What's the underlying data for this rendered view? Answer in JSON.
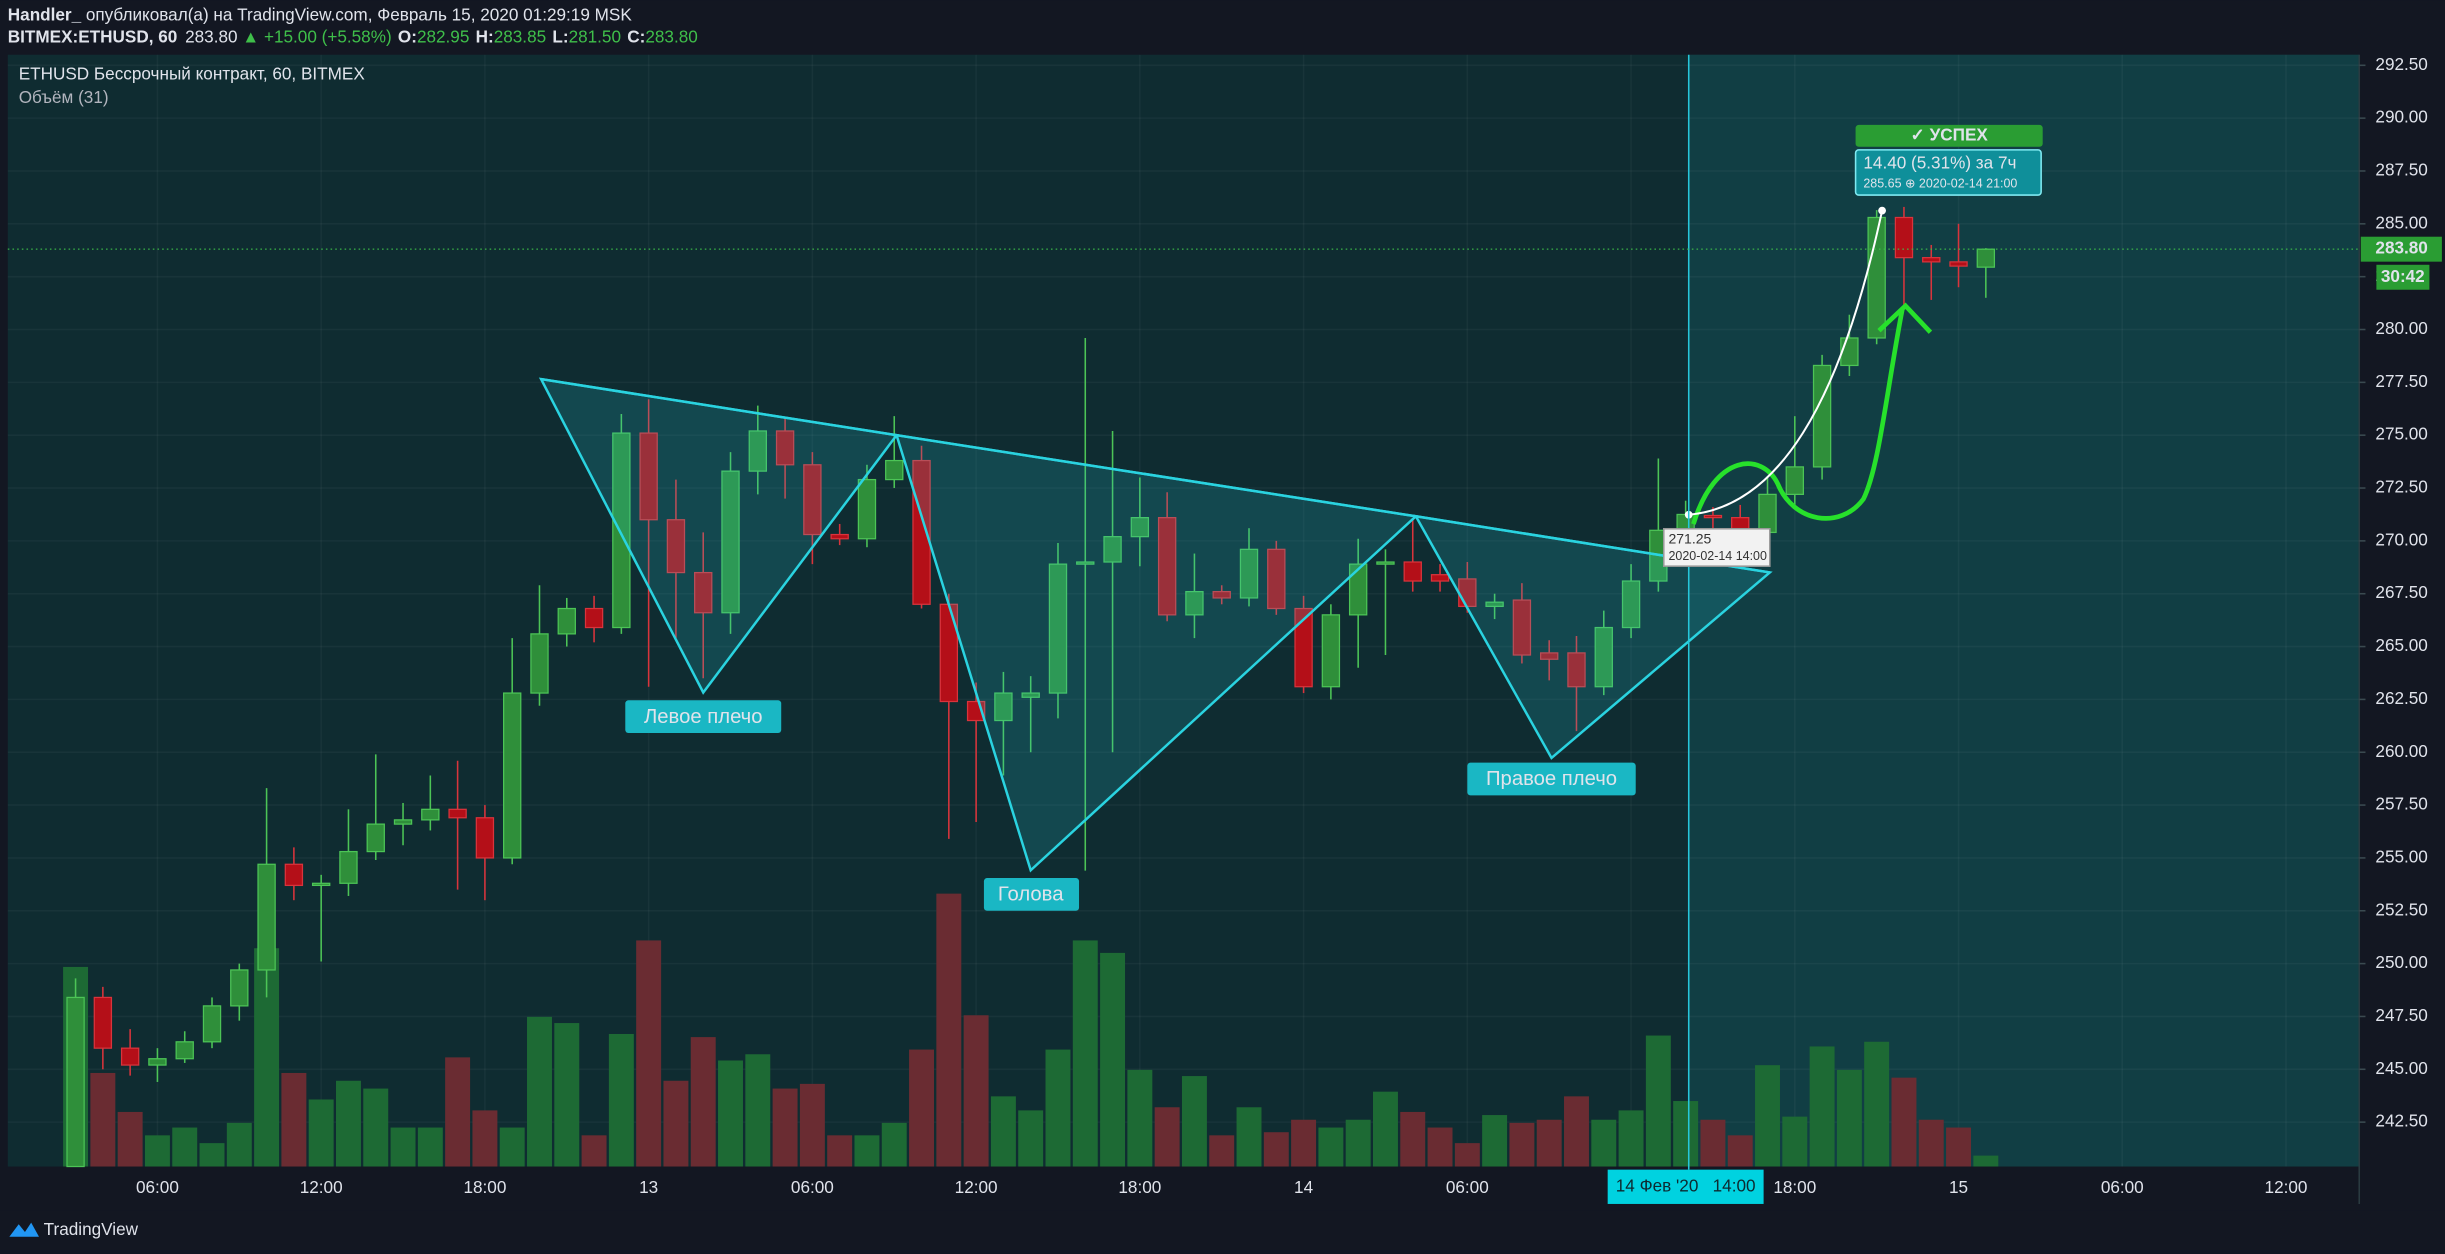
{
  "header": {
    "author": "Handler_",
    "published": "опубликовал(а) на TradingView.com, Февраль 15, 2020 01:29:19 MSK",
    "symbol": "BITMEX:ETHUSD, 60",
    "change": "▲ +15.00 (+5.58%)",
    "ohlc": [
      {
        "key": "O:",
        "value": "282.95"
      },
      {
        "key": "H:",
        "value": "283.85"
      },
      {
        "key": "L:",
        "value": "281.50"
      },
      {
        "key": "C:",
        "value": "283.80"
      }
    ]
  },
  "footer": {
    "brand": "TradingView"
  },
  "chart_data": {
    "type": "candlestick",
    "title": "ETHUSD Бессрочный контракт, 60, BITMEX",
    "subtitle": "Объём (31)",
    "x": [
      "2020-02-12 03:00",
      "2020-02-12 04:00",
      "2020-02-12 05:00",
      "2020-02-12 06:00",
      "2020-02-12 07:00",
      "2020-02-12 08:00",
      "2020-02-12 09:00",
      "2020-02-12 10:00",
      "2020-02-12 11:00",
      "2020-02-12 12:00",
      "2020-02-12 13:00",
      "2020-02-12 14:00",
      "2020-02-12 15:00",
      "2020-02-12 16:00",
      "2020-02-12 17:00",
      "2020-02-12 18:00",
      "2020-02-12 19:00",
      "2020-02-12 20:00",
      "2020-02-12 21:00",
      "2020-02-12 22:00",
      "2020-02-12 23:00",
      "2020-02-13 00:00",
      "2020-02-13 01:00",
      "2020-02-13 02:00",
      "2020-02-13 03:00",
      "2020-02-13 04:00",
      "2020-02-13 05:00",
      "2020-02-13 06:00",
      "2020-02-13 07:00",
      "2020-02-13 08:00",
      "2020-02-13 09:00",
      "2020-02-13 10:00",
      "2020-02-13 11:00",
      "2020-02-13 12:00",
      "2020-02-13 13:00",
      "2020-02-13 14:00",
      "2020-02-13 15:00",
      "2020-02-13 16:00",
      "2020-02-13 17:00",
      "2020-02-13 18:00",
      "2020-02-13 19:00",
      "2020-02-13 20:00",
      "2020-02-13 21:00",
      "2020-02-13 22:00",
      "2020-02-13 23:00",
      "2020-02-14 00:00",
      "2020-02-14 01:00",
      "2020-02-14 02:00",
      "2020-02-14 03:00",
      "2020-02-14 04:00",
      "2020-02-14 05:00",
      "2020-02-14 06:00",
      "2020-02-14 07:00",
      "2020-02-14 08:00",
      "2020-02-14 09:00",
      "2020-02-14 10:00",
      "2020-02-14 11:00",
      "2020-02-14 12:00",
      "2020-02-14 13:00",
      "2020-02-14 14:00",
      "2020-02-14 15:00",
      "2020-02-14 16:00",
      "2020-02-14 17:00",
      "2020-02-14 18:00",
      "2020-02-14 19:00",
      "2020-02-14 20:00",
      "2020-02-14 21:00",
      "2020-02-14 22:00",
      "2020-02-14 23:00",
      "2020-02-15 00:00",
      "2020-02-15 01:00"
    ],
    "series": [
      {
        "name": "ETHUSD",
        "up_color": "#2f8f3a",
        "up_border": "#4cc456",
        "down_color": "#b40f18",
        "down_border": "#d8343c",
        "volume_up_color": "#1d6a34",
        "volume_down_color": "#6a2c32",
        "open": [
          240.4,
          248.4,
          246.0,
          245.2,
          245.5,
          246.3,
          248.0,
          249.7,
          254.7,
          253.7,
          253.8,
          255.3,
          256.6,
          256.8,
          257.3,
          256.9,
          255.0,
          262.8,
          265.6,
          266.8,
          265.9,
          275.1,
          271.0,
          268.5,
          266.6,
          273.3,
          275.2,
          273.6,
          270.3,
          270.1,
          272.9,
          273.8,
          267.0,
          262.4,
          261.5,
          262.6,
          262.8,
          268.9,
          269.0,
          270.2,
          271.1,
          266.5,
          267.6,
          267.3,
          269.6,
          266.8,
          263.1,
          266.5,
          268.9,
          269.0,
          268.4,
          268.2,
          266.9,
          267.2,
          264.7,
          264.7,
          263.1,
          265.9,
          268.1,
          270.5,
          271.2,
          271.1,
          270.4,
          272.2,
          273.5,
          278.3,
          279.6,
          285.3,
          283.4,
          283.2,
          282.95
        ],
        "high": [
          249.3,
          248.9,
          246.9,
          246.0,
          246.8,
          248.4,
          250.0,
          258.3,
          255.5,
          254.2,
          257.3,
          259.9,
          257.6,
          258.9,
          259.6,
          257.5,
          265.4,
          267.9,
          267.3,
          267.4,
          276.0,
          276.7,
          272.9,
          270.4,
          274.2,
          276.4,
          275.8,
          274.2,
          270.8,
          273.6,
          275.9,
          274.5,
          267.5,
          263.3,
          263.8,
          263.6,
          269.9,
          279.6,
          275.2,
          273.0,
          272.3,
          269.4,
          267.9,
          270.6,
          270.0,
          267.4,
          267.0,
          270.1,
          269.6,
          271.0,
          268.9,
          269.0,
          267.5,
          268.0,
          265.3,
          265.5,
          266.7,
          268.9,
          273.9,
          271.9,
          271.6,
          271.7,
          273.0,
          275.9,
          278.8,
          280.7,
          285.65,
          285.8,
          284.0,
          285.0,
          283.85
        ],
        "low": [
          240.4,
          245.0,
          244.7,
          244.4,
          245.3,
          246.0,
          247.3,
          248.4,
          253.0,
          250.1,
          253.2,
          254.9,
          255.6,
          256.3,
          253.5,
          253.0,
          254.7,
          262.2,
          265.0,
          265.2,
          265.6,
          263.1,
          265.4,
          263.5,
          265.6,
          272.2,
          272.0,
          268.9,
          269.8,
          269.7,
          272.5,
          266.8,
          255.9,
          256.7,
          258.9,
          260.0,
          261.6,
          254.4,
          260.0,
          268.8,
          266.2,
          265.4,
          267.0,
          266.9,
          266.5,
          262.8,
          262.5,
          264.0,
          264.6,
          267.6,
          267.6,
          266.6,
          266.3,
          264.2,
          263.4,
          261.0,
          262.7,
          265.4,
          267.6,
          269.9,
          270.5,
          269.9,
          270.1,
          271.7,
          272.9,
          277.8,
          279.3,
          281.0,
          281.4,
          282.0,
          281.5
        ],
        "close": [
          248.4,
          246.0,
          245.2,
          245.5,
          246.3,
          248.0,
          249.7,
          254.7,
          253.7,
          253.8,
          255.3,
          256.6,
          256.8,
          257.3,
          256.9,
          255.0,
          262.8,
          265.6,
          266.8,
          265.9,
          275.1,
          271.0,
          268.5,
          266.6,
          273.3,
          275.2,
          273.6,
          270.3,
          270.1,
          272.9,
          273.8,
          267.0,
          262.4,
          261.5,
          262.8,
          262.8,
          268.9,
          269.0,
          270.2,
          271.1,
          266.5,
          267.6,
          267.3,
          269.6,
          266.8,
          263.1,
          266.5,
          268.9,
          269.0,
          268.1,
          268.1,
          266.9,
          267.1,
          264.6,
          264.4,
          263.1,
          265.9,
          268.1,
          270.5,
          271.25,
          271.1,
          270.4,
          272.2,
          273.5,
          278.3,
          279.6,
          285.3,
          283.4,
          283.2,
          283.0,
          283.8
        ],
        "volume": [
          128,
          60,
          35,
          20,
          25,
          15,
          28,
          140,
          60,
          43,
          55,
          50,
          25,
          25,
          70,
          36,
          25,
          96,
          92,
          20,
          85,
          145,
          55,
          83,
          68,
          72,
          50,
          53,
          20,
          20,
          28,
          75,
          175,
          97,
          45,
          36,
          75,
          145,
          137,
          62,
          38,
          58,
          20,
          38,
          22,
          30,
          25,
          30,
          48,
          35,
          25,
          15,
          33,
          28,
          30,
          45,
          30,
          36,
          84,
          42,
          30,
          20,
          65,
          32,
          77,
          62,
          80,
          57,
          30,
          25,
          7
        ]
      }
    ],
    "ylim": [
      240.4,
      293.0
    ],
    "yticks": [
      {
        "value": 242.5,
        "label": "242.50"
      },
      {
        "value": 245,
        "label": "245.00"
      },
      {
        "value": 247.5,
        "label": "247.50"
      },
      {
        "value": 250,
        "label": "250.00"
      },
      {
        "value": 252.5,
        "label": "252.50"
      },
      {
        "value": 255,
        "label": "255.00"
      },
      {
        "value": 257.5,
        "label": "257.50"
      },
      {
        "value": 260,
        "label": "260.00"
      },
      {
        "value": 262.5,
        "label": "262.50"
      },
      {
        "value": 265,
        "label": "265.00"
      },
      {
        "value": 267.5,
        "label": "267.50"
      },
      {
        "value": 270,
        "label": "270.00"
      },
      {
        "value": 272.5,
        "label": "272.50"
      },
      {
        "value": 275,
        "label": "275.00"
      },
      {
        "value": 277.5,
        "label": "277.50"
      },
      {
        "value": 280,
        "label": "280.00"
      },
      {
        "value": 282.5,
        "label": "282.50"
      },
      {
        "value": 285,
        "label": "285.00"
      },
      {
        "value": 287.5,
        "label": "287.50"
      },
      {
        "value": 290,
        "label": "290.00"
      },
      {
        "value": 292.5,
        "label": "292.50"
      }
    ],
    "volume_ylim": [
      0,
      713
    ],
    "xlim": [
      "2020-02-12 00:31",
      "2020-02-15 14:41"
    ],
    "xticks": [
      {
        "value": "2020-02-12 06:00",
        "label": "06:00"
      },
      {
        "value": "2020-02-12 12:00",
        "label": "12:00"
      },
      {
        "value": "2020-02-12 18:00",
        "label": "18:00"
      },
      {
        "value": "2020-02-13 00:00",
        "label": "13"
      },
      {
        "value": "2020-02-13 06:00",
        "label": "06:00"
      },
      {
        "value": "2020-02-13 12:00",
        "label": "12:00"
      },
      {
        "value": "2020-02-13 18:00",
        "label": "18:00"
      },
      {
        "value": "2020-02-14 00:00",
        "label": "14"
      },
      {
        "value": "2020-02-14 06:00",
        "label": "06:00"
      },
      {
        "value": "2020-02-14 12:00",
        "label": "12:00"
      },
      {
        "value": "2020-02-14 18:00",
        "label": "18:00"
      },
      {
        "value": "2020-02-15 00:00",
        "label": "15"
      },
      {
        "value": "2020-02-15 06:00",
        "label": "06:00"
      },
      {
        "value": "2020-02-15 12:00",
        "label": "12:00"
      }
    ],
    "grid": true,
    "crosshair": {
      "value": "2020-02-14 14:00",
      "label": "14 Фев '20   14:00"
    },
    "last_price": {
      "value": 283.8,
      "label": "283.80"
    },
    "countdown": "30:42",
    "pattern_labels": [
      "Левое плечо",
      "Голова",
      "Правое плечо"
    ],
    "success": {
      "badge": "✓ УСПЕХ",
      "change": "14.40 (5.31%) за 7ч",
      "detail": "285.65 ⊕ 2020-02-14  21:00"
    },
    "anchor": {
      "price": "271.25",
      "date": "2020-02-14 14:00"
    }
  }
}
